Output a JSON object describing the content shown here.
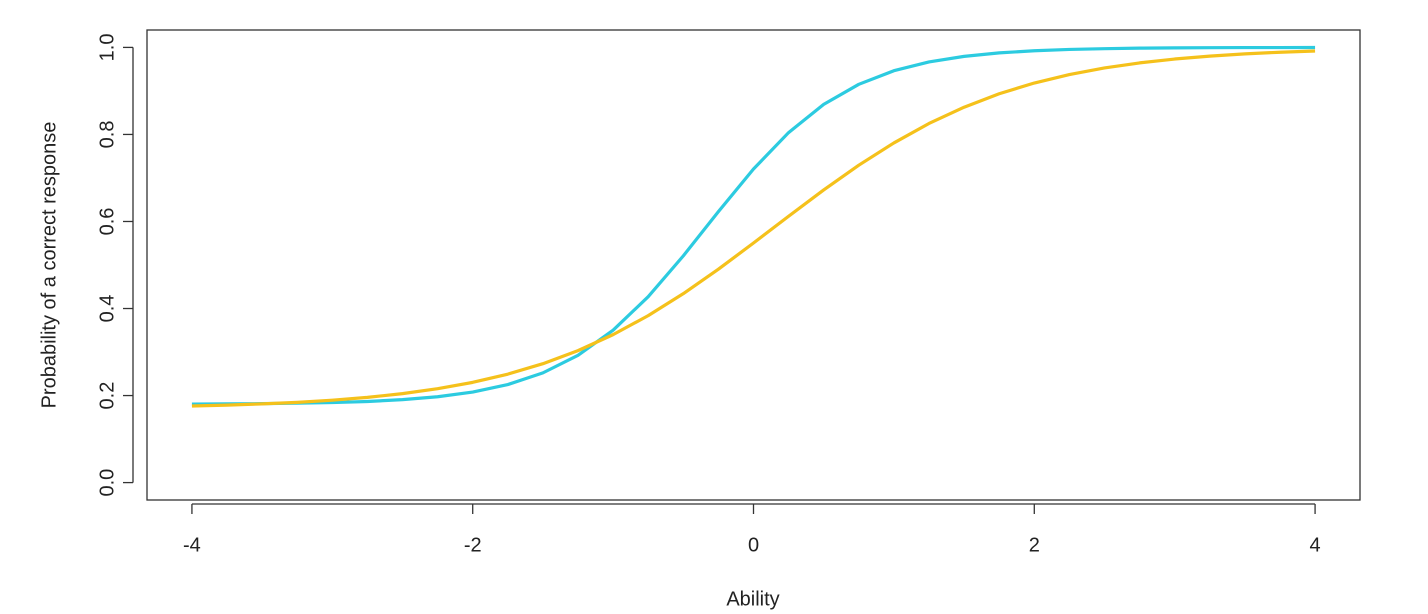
{
  "chart_data": {
    "type": "line",
    "xlabel": "Ability",
    "ylabel": "Probability of a correct response",
    "x": [
      -4,
      -3.75,
      -3.5,
      -3.25,
      -3,
      -2.75,
      -2.5,
      -2.25,
      -2,
      -1.75,
      -1.5,
      -1.25,
      -1,
      -0.75,
      -0.5,
      -0.25,
      0,
      0.25,
      0.5,
      0.75,
      1,
      1.25,
      1.5,
      1.75,
      2,
      2.25,
      2.5,
      2.75,
      3,
      3.25,
      3.5,
      3.75,
      4
    ],
    "series": [
      {
        "color": "#2ccbe0",
        "values": [
          0.1805,
          0.1809,
          0.1814,
          0.1824,
          0.1839,
          0.1864,
          0.1906,
          0.1972,
          0.208,
          0.2253,
          0.2521,
          0.2924,
          0.3502,
          0.4272,
          0.521,
          0.6227,
          0.7206,
          0.8043,
          0.869,
          0.9152,
          0.9464,
          0.9666,
          0.9794,
          0.9874,
          0.9923,
          0.9953,
          0.9971,
          0.9983,
          0.9989,
          0.9993,
          0.9996,
          0.9997,
          0.9998
        ]
      },
      {
        "color": "#f5c11b",
        "values": [
          0.176,
          0.178,
          0.1808,
          0.1844,
          0.1893,
          0.1958,
          0.2044,
          0.2157,
          0.2303,
          0.2492,
          0.2732,
          0.3032,
          0.34,
          0.3837,
          0.4342,
          0.4904,
          0.5505,
          0.6121,
          0.6725,
          0.7293,
          0.7805,
          0.8252,
          0.8626,
          0.8935,
          0.9182,
          0.9377,
          0.9528,
          0.9644,
          0.9733,
          0.98,
          0.9851,
          0.9889,
          0.9917
        ]
      }
    ],
    "xlim": [
      -4.32,
      4.32
    ],
    "ylim": [
      -0.04,
      1.04
    ],
    "xticks": [
      -4,
      -2,
      0,
      2,
      4
    ],
    "yticks": [
      {
        "value": 0,
        "label": "0.0"
      },
      0.2,
      0.4,
      0.6,
      0.8,
      {
        "value": 1,
        "label": "1.0"
      }
    ],
    "grid": false
  }
}
